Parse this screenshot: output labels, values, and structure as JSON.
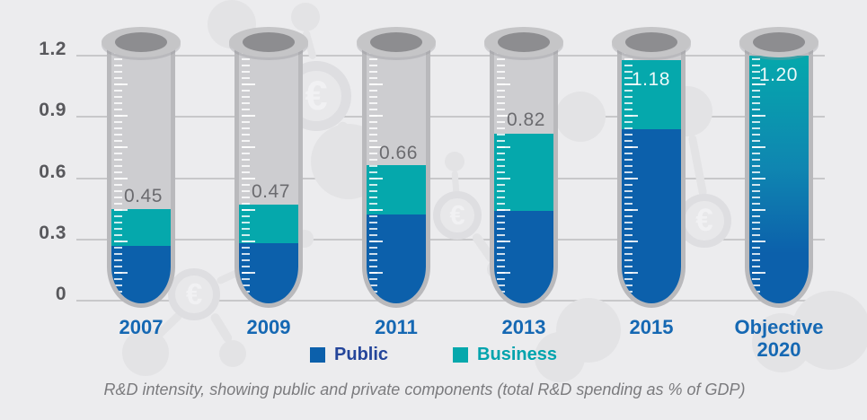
{
  "chart_data": {
    "type": "bar",
    "stacked": true,
    "caption": "R&D intensity, showing public and private components (total R&D spending as % of GDP)",
    "categories": [
      "2007",
      "2009",
      "2011",
      "2013",
      "2015",
      "Objective 2020"
    ],
    "series": [
      {
        "name": "Public",
        "values": [
          0.27,
          0.28,
          0.42,
          0.44,
          0.84,
          null
        ]
      },
      {
        "name": "Business",
        "values": [
          0.18,
          0.19,
          0.24,
          0.38,
          0.34,
          null
        ]
      }
    ],
    "totals": [
      0.45,
      0.47,
      0.66,
      0.82,
      1.18,
      1.2
    ],
    "total_labels": [
      "0.45",
      "0.47",
      "0.66",
      "0.82",
      "1.18",
      "1.20"
    ],
    "total_label_styles": [
      "dark",
      "dark",
      "dark",
      "dark",
      "light",
      "light"
    ],
    "ylim": [
      0,
      1.2
    ],
    "yticks": [
      {
        "value": 1.2,
        "label": "1.2"
      },
      {
        "value": 0.9,
        "label": "0.9"
      },
      {
        "value": 0.6,
        "label": "0.6"
      },
      {
        "value": 0.3,
        "label": "0.3"
      },
      {
        "value": 0,
        "label": "0"
      }
    ],
    "legend_position": "bottom",
    "grid": true
  },
  "legend": {
    "items": [
      {
        "label": "Public"
      },
      {
        "label": "Business"
      }
    ]
  },
  "decor": {
    "euro_symbol": "€"
  },
  "colors": {
    "background": "#ececee",
    "public": "#0c60ab",
    "business": "#05a8ac",
    "gradient_top": "#05a8ac",
    "gradient_mid": "#0f86b1",
    "gradient_bottom": "#0c60ab",
    "tube_glass": "#cdcdd0",
    "tube_outline": "#b9b9bc",
    "tube_rim": "#c5c5c7",
    "tube_opening": "#8d8d90",
    "gridline": "#c8c8ca",
    "axis_label": "#58585c",
    "value_label_dark": "#6b6b6f",
    "value_label_light": "rgba(255,255,255,0.93)",
    "year_label": "#1568b3",
    "legend_public_text": "#24459a",
    "legend_business_text": "#00a3ad",
    "caption_text": "#7b7b7e",
    "decoration": "#e3e3e5",
    "decoration_ring": "#dedee1",
    "decoration_lens_bg": "#e8e8ea",
    "decoration_euro": "#f1f1f3"
  }
}
